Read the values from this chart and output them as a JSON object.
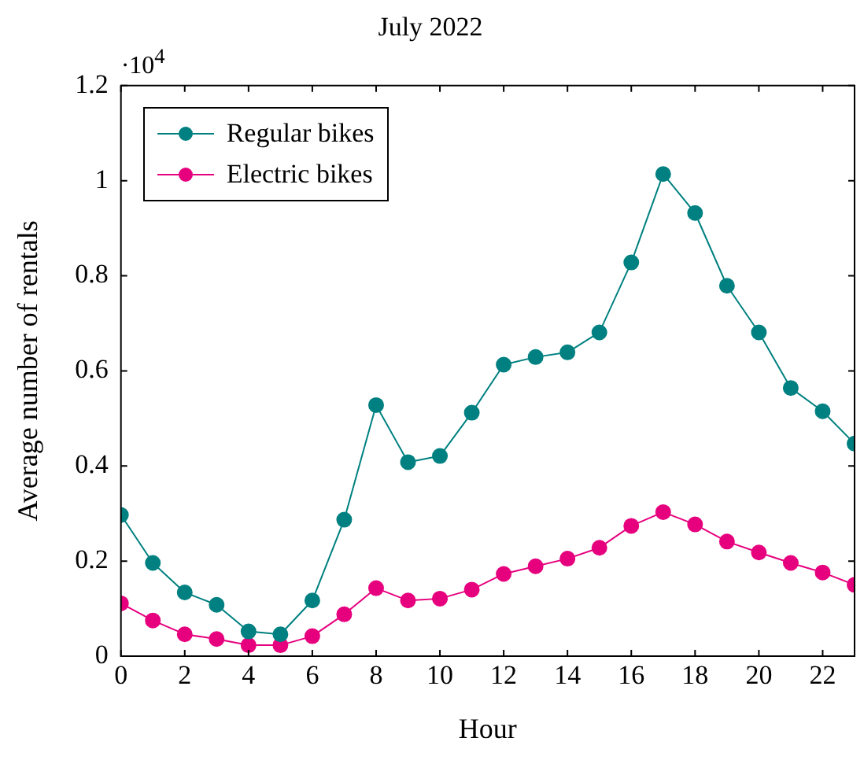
{
  "chart_data": {
    "type": "line",
    "title": "July 2022",
    "xlabel": "Hour",
    "ylabel": "Average number of rentals",
    "annotations": [
      "·10$^{4}$"
    ],
    "x": [
      0,
      1,
      2,
      3,
      4,
      5,
      6,
      7,
      8,
      9,
      10,
      11,
      12,
      13,
      14,
      15,
      16,
      17,
      18,
      19,
      20,
      21,
      22,
      23
    ],
    "series": [
      {
        "name": "Regular bikes",
        "color": "#008080",
        "values": [
          0.297,
          0.196,
          0.134,
          0.108,
          0.052,
          0.046,
          0.117,
          0.287,
          0.528,
          0.408,
          0.421,
          0.512,
          0.613,
          0.629,
          0.639,
          0.681,
          0.828,
          1.014,
          0.932,
          0.779,
          0.681,
          0.564,
          0.515,
          0.447
        ]
      },
      {
        "name": "Electric bikes",
        "color": "#e6007e",
        "values": [
          0.111,
          0.075,
          0.046,
          0.036,
          0.023,
          0.023,
          0.042,
          0.088,
          0.143,
          0.117,
          0.121,
          0.14,
          0.173,
          0.189,
          0.205,
          0.228,
          0.274,
          0.303,
          0.277,
          0.241,
          0.218,
          0.196,
          0.176,
          0.15
        ]
      }
    ],
    "xlim": [
      0,
      23
    ],
    "xticks": [
      0,
      2,
      4,
      6,
      8,
      10,
      12,
      14,
      16,
      18,
      20,
      22
    ],
    "ylim": [
      0,
      1.2
    ],
    "yticks": [
      0,
      0.2,
      0.4,
      0.6,
      0.8,
      1,
      1.2
    ],
    "grid": false,
    "legend": "top left",
    "marker": "circle",
    "line_style": "solid"
  }
}
